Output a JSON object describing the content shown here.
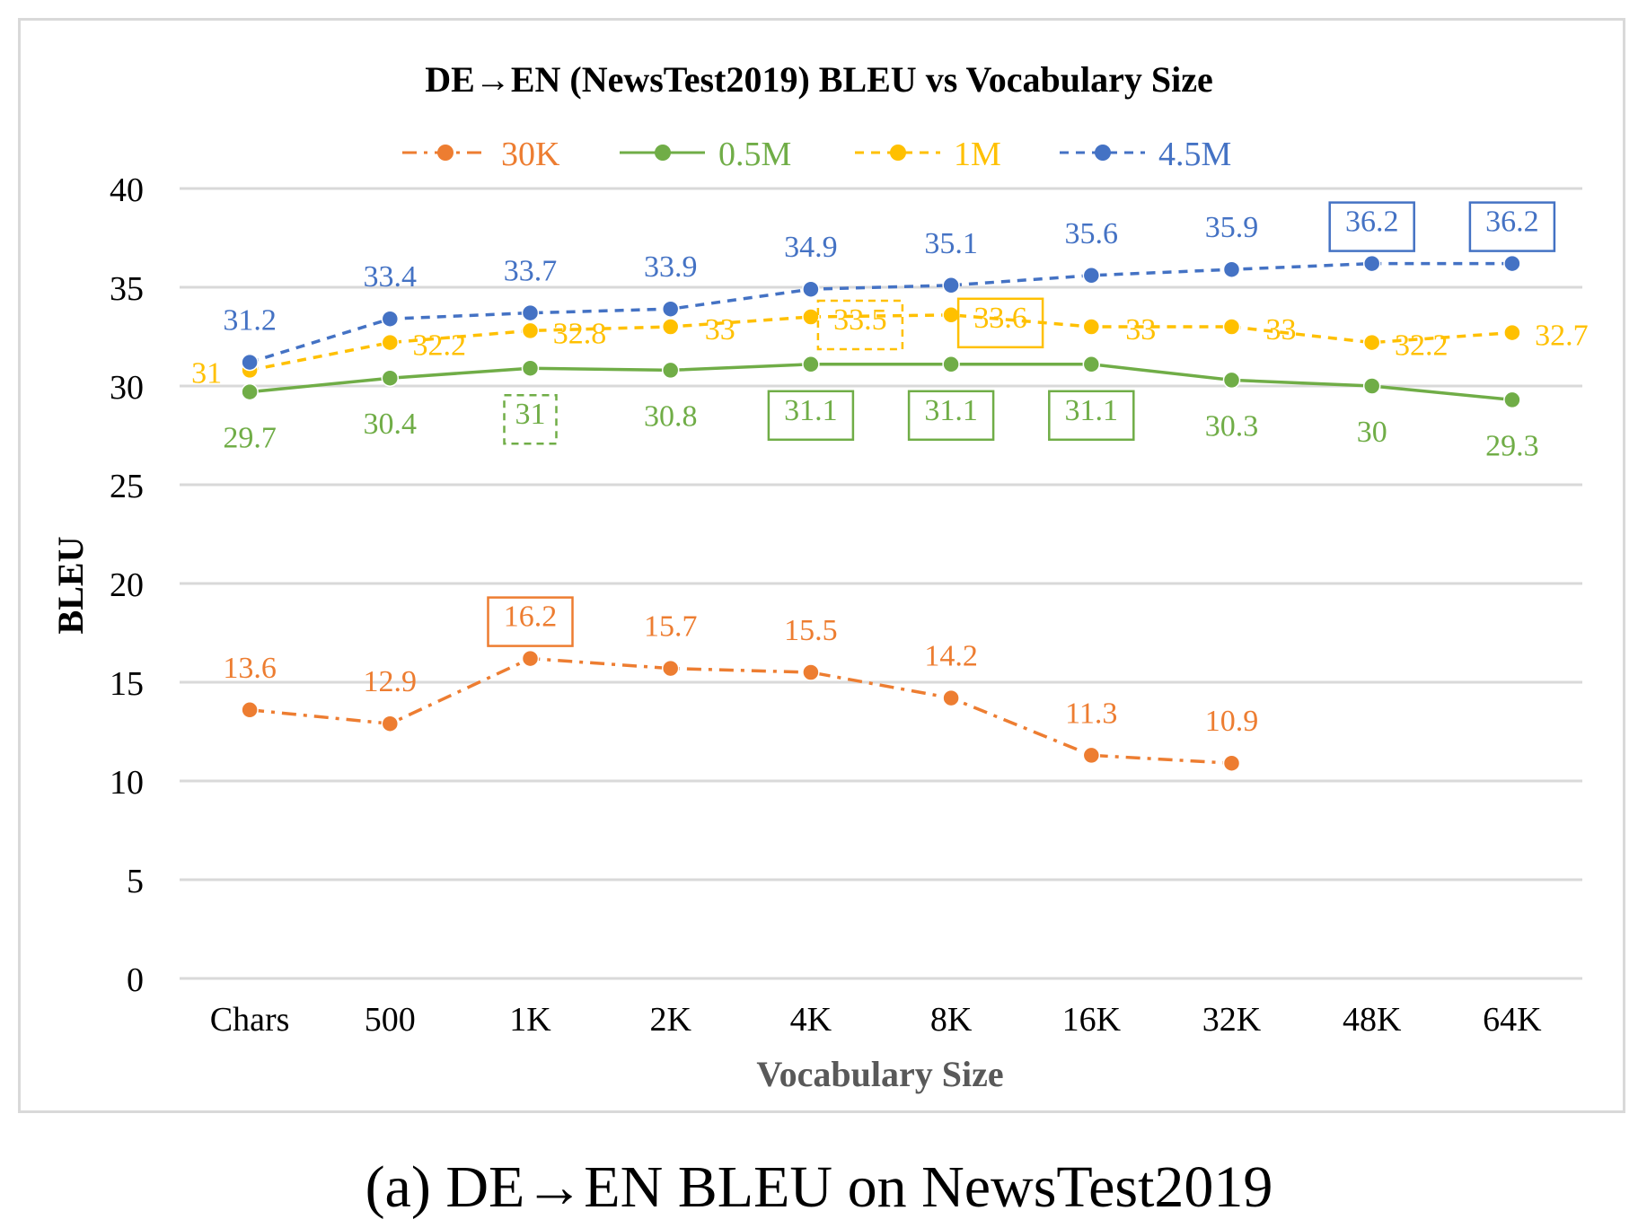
{
  "caption": "(a) DE→EN BLEU on NewsTest2019",
  "chart_data": {
    "type": "line",
    "title": "DE→EN (NewsTest2019) BLEU vs Vocabulary Size",
    "xlabel": "Vocabulary Size",
    "ylabel": "BLEU",
    "ylim": [
      0,
      40
    ],
    "yticks": [
      "0",
      "5",
      "10",
      "15",
      "20",
      "25",
      "30",
      "35",
      "40"
    ],
    "grid": true,
    "legend_position": "top-center",
    "categories": [
      "Chars",
      "500",
      "1K",
      "2K",
      "4K",
      "8K",
      "16K",
      "32K",
      "48K",
      "64K"
    ],
    "series": [
      {
        "name": "30K",
        "color": "#ed7d31",
        "dash": "dash-dot",
        "values": [
          13.6,
          12.9,
          16.2,
          15.7,
          15.5,
          14.2,
          11.3,
          10.9,
          null,
          null
        ],
        "labels": [
          "13.6",
          "12.9",
          "16.2",
          "15.7",
          "15.5",
          "14.2",
          "11.3",
          "10.9",
          null,
          null
        ],
        "boxed": [
          false,
          false,
          true,
          false,
          false,
          false,
          false,
          false,
          false,
          false
        ],
        "dashed_box": [
          false,
          false,
          false,
          false,
          false,
          false,
          false,
          false,
          false,
          false
        ],
        "label_pos": [
          "above",
          "above",
          "above",
          "above",
          "above",
          "above",
          "above",
          "above",
          null,
          null
        ]
      },
      {
        "name": "0.5M",
        "color": "#70ad47",
        "dash": "solid",
        "values": [
          29.7,
          30.4,
          30.9,
          30.8,
          31.1,
          31.1,
          31.1,
          30.3,
          30.0,
          29.3
        ],
        "labels": [
          "29.7",
          "30.4",
          "31",
          "30.8",
          "31.1",
          "31.1",
          "31.1",
          "30.3",
          "30",
          "29.3"
        ],
        "boxed": [
          false,
          false,
          false,
          false,
          true,
          true,
          true,
          false,
          false,
          false
        ],
        "dashed_box": [
          false,
          false,
          true,
          false,
          false,
          false,
          false,
          false,
          false,
          false
        ],
        "label_pos": [
          "below",
          "below",
          "below",
          "below",
          "below",
          "below",
          "below",
          "below",
          "below",
          "below"
        ]
      },
      {
        "name": "1M",
        "color": "#ffc000",
        "dash": "dash",
        "values": [
          30.8,
          32.2,
          32.8,
          33.0,
          33.5,
          33.6,
          33.0,
          33.0,
          32.2,
          32.7
        ],
        "labels": [
          "31",
          "32.2",
          "32.8",
          "33",
          "33.5",
          "33.6",
          "33",
          "33",
          "32.2",
          "32.7"
        ],
        "boxed": [
          false,
          false,
          false,
          false,
          false,
          true,
          false,
          false,
          false,
          false
        ],
        "dashed_box": [
          false,
          false,
          false,
          false,
          true,
          false,
          false,
          false,
          false,
          false
        ],
        "label_pos": [
          "left",
          "right",
          "right",
          "right",
          "right",
          "right",
          "right",
          "right",
          "right",
          "right"
        ]
      },
      {
        "name": "4.5M",
        "color": "#4472c4",
        "dash": "dash",
        "values": [
          31.2,
          33.4,
          33.7,
          33.9,
          34.9,
          35.1,
          35.6,
          35.9,
          36.2,
          36.2
        ],
        "labels": [
          "31.2",
          "33.4",
          "33.7",
          "33.9",
          "34.9",
          "35.1",
          "35.6",
          "35.9",
          "36.2",
          "36.2"
        ],
        "boxed": [
          false,
          false,
          false,
          false,
          false,
          false,
          false,
          false,
          true,
          true
        ],
        "dashed_box": [
          false,
          false,
          false,
          false,
          false,
          false,
          false,
          false,
          false,
          false
        ],
        "label_pos": [
          "above",
          "above",
          "above",
          "above",
          "above",
          "above",
          "above",
          "above",
          "above",
          "above"
        ]
      }
    ]
  }
}
